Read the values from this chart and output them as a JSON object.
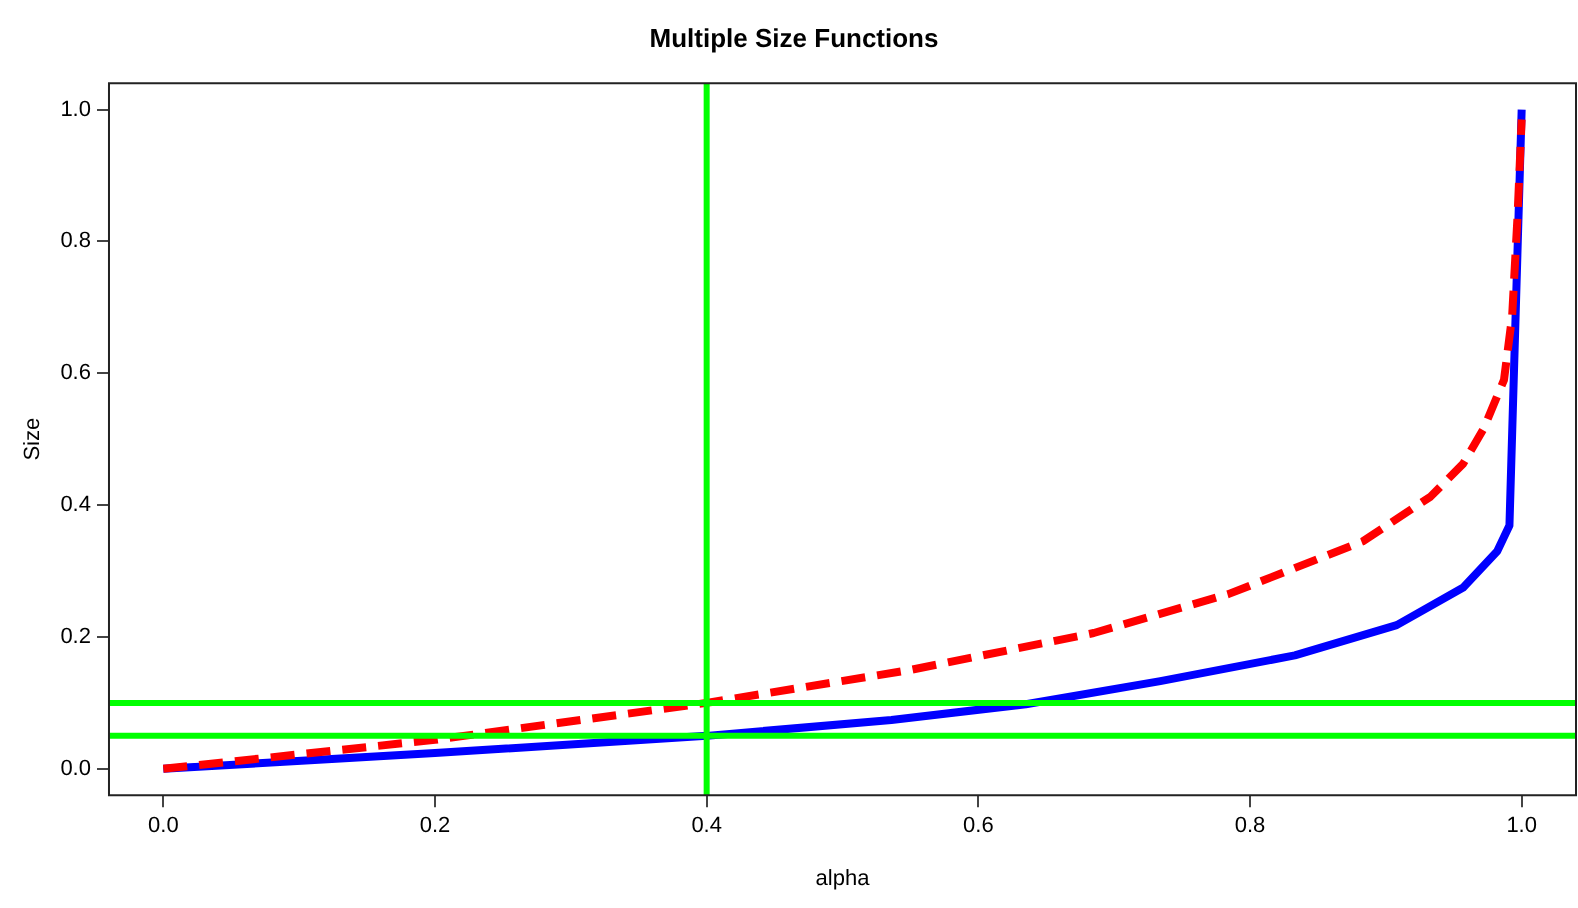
{
  "chart_data": {
    "type": "line",
    "title": "Multiple Size Functions",
    "xlabel": "alpha",
    "ylabel": "Size",
    "xlim": [
      -0.04,
      1.04
    ],
    "ylim": [
      -0.04,
      1.04
    ],
    "xticks": [
      {
        "value": 0,
        "label": "0.0"
      },
      {
        "value": 0.2,
        "label": "0.2"
      },
      {
        "value": 0.4,
        "label": "0.4"
      },
      {
        "value": 0.6,
        "label": "0.6"
      },
      {
        "value": 0.8,
        "label": "0.8"
      },
      {
        "value": 1,
        "label": "1.0"
      }
    ],
    "yticks": [
      {
        "value": 0,
        "label": "0.0"
      },
      {
        "value": 0.2,
        "label": "0.2"
      },
      {
        "value": 0.4,
        "label": "0.4"
      },
      {
        "value": 0.6,
        "label": "0.6"
      },
      {
        "value": 0.8,
        "label": "0.8"
      },
      {
        "value": 1,
        "label": "1.0"
      }
    ],
    "grid": false,
    "legend": false,
    "marker": "none",
    "series": [
      {
        "color": "#0000ff",
        "line_style": "solid",
        "x": [
          0,
          0.2,
          0.4,
          0.536,
          0.635,
          0.734,
          0.833,
          0.908,
          0.957,
          0.982,
          0.991,
          1.0
        ],
        "values": [
          0,
          0.024,
          0.05,
          0.074,
          0.098,
          0.133,
          0.172,
          0.218,
          0.275,
          0.33,
          0.369,
          1.0
        ]
      },
      {
        "color": "#ff0000",
        "line_style": "dashed",
        "x": [
          0,
          0.2,
          0.4,
          0.55,
          0.685,
          0.784,
          0.883,
          0.933,
          0.957,
          0.972,
          0.987,
          0.993,
          0.997,
          1.0
        ],
        "values": [
          0,
          0.044,
          0.1,
          0.15,
          0.206,
          0.265,
          0.345,
          0.413,
          0.463,
          0.516,
          0.59,
          0.687,
          0.84,
          0.985
        ]
      }
    ],
    "ref_lines": [
      {
        "axis": "x",
        "value": 0.4,
        "color": "#00ff00"
      },
      {
        "axis": "y",
        "value": 0.05,
        "color": "#00ff00"
      },
      {
        "axis": "y",
        "value": 0.1,
        "color": "#00ff00"
      }
    ]
  }
}
